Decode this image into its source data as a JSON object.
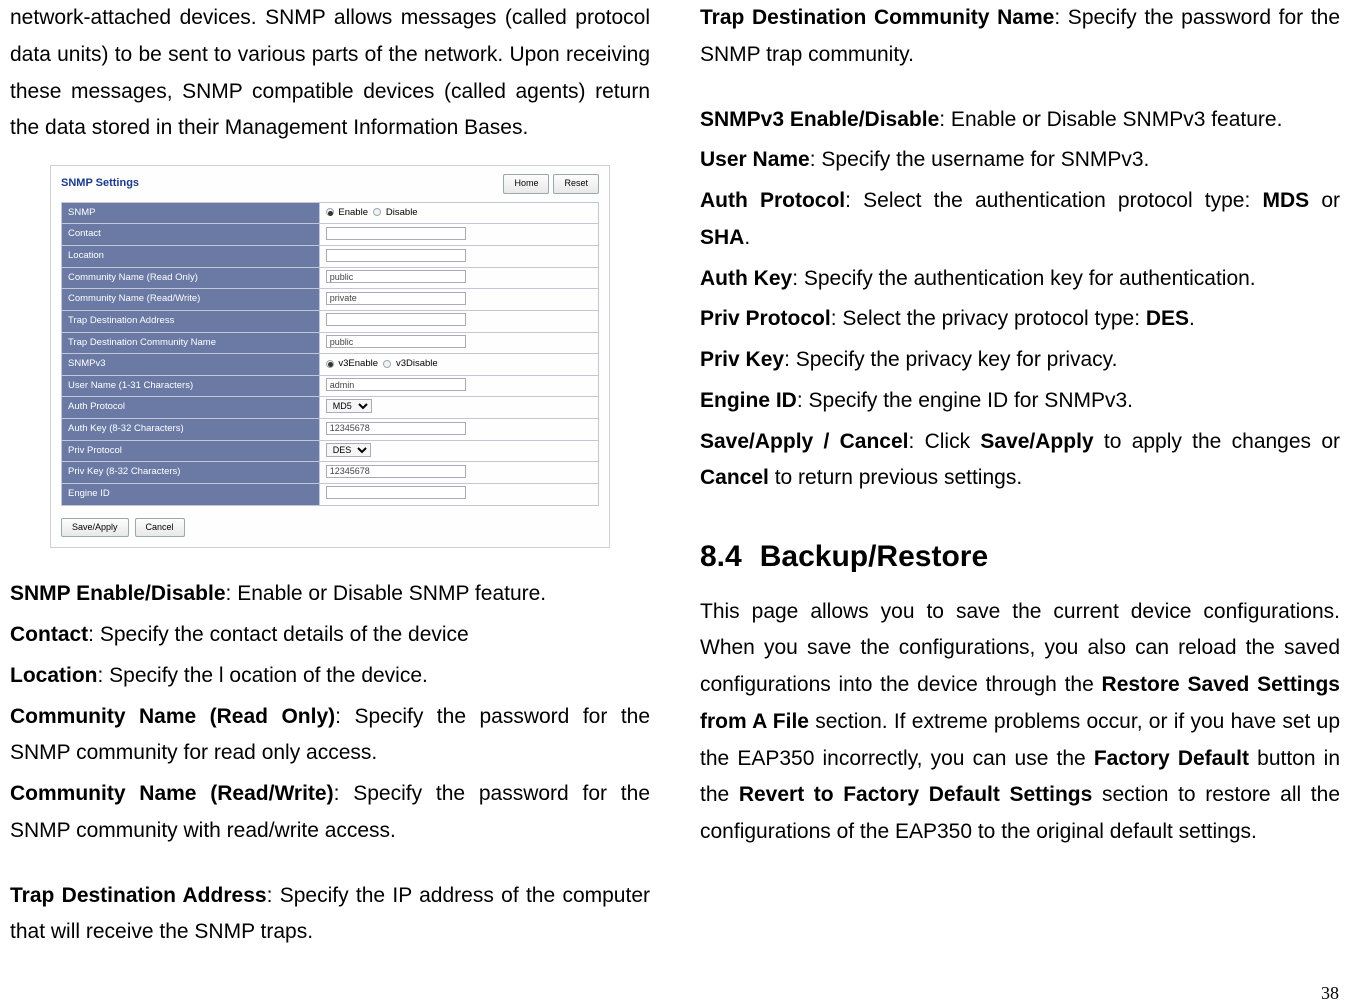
{
  "left": {
    "intro": "network-attached devices. SNMP allows messages (called protocol data units) to be sent to various parts of the network. Upon receiving these messages, SNMP compatible devices (called agents) return the data stored in their Management Information Bases.",
    "thumb": {
      "title": "SNMP Settings",
      "btn_home": "Home",
      "btn_reset": "Reset",
      "rows": {
        "snmp": "SNMP",
        "enable": "Enable",
        "disable": "Disable",
        "contact": "Contact",
        "location": "Location",
        "cn_ro": "Community Name (Read Only)",
        "cn_ro_val": "public",
        "cn_rw": "Community Name (Read/Write)",
        "cn_rw_val": "private",
        "trap_addr": "Trap Destination Address",
        "trap_cn": "Trap Destination Community Name",
        "trap_cn_val": "public",
        "snmpv3": "SNMPv3",
        "v3enable": "v3Enable",
        "v3disable": "v3Disable",
        "uname": "User Name (1-31 Characters)",
        "uname_val": "admin",
        "auth_proto": "Auth Protocol",
        "auth_proto_val": "MD5",
        "auth_key": "Auth Key (8-32 Characters)",
        "key_val": "12345678",
        "priv_proto": "Priv Protocol",
        "priv_proto_val": "DES",
        "priv_key": "Priv Key (8-32 Characters)",
        "engine": "Engine ID"
      },
      "btn_save": "Save/Apply",
      "btn_cancel": "Cancel"
    },
    "defs": {
      "snmp_ed_t": "SNMP Enable/Disable",
      "snmp_ed_b": ": Enable or Disable SNMP feature.",
      "contact_t": "Contact",
      "contact_b": ": Specify the contact details of the device",
      "location_t": "Location",
      "location_b": ": Specify the l ocation of the device.",
      "cnro_t": "Community Name (Read Only)",
      "cnro_b": ": Specify the password for the SNMP community for read only access.",
      "cnrw_t": "Community Name (Read/Write)",
      "cnrw_b": ": Specify the password for the SNMP community with read/write access.",
      "tda_t": "Trap Destination Address",
      "tda_b": ": Specify the IP address of the computer that will receive the SNMP traps."
    }
  },
  "right": {
    "defs": {
      "tdcn_t": "Trap Destination Community Name",
      "tdcn_b": ": Specify the password for the SNMP trap community.",
      "v3ed_t": "SNMPv3 Enable/Disable",
      "v3ed_b": ": Enable or Disable SNMPv3 feature.",
      "uname_t": "User Name",
      "uname_b": ": Specify the username for SNMPv3.",
      "ap_t": "Auth Protocol",
      "ap_b1": ": Select the authentication protocol type: ",
      "ap_mds": "MDS",
      "ap_or": " or ",
      "ap_sha": "SHA",
      "ap_dot": ".",
      "ak_t": "Auth Key",
      "ak_b": ": Specify the authentication key for authentication.",
      "pp_t": "Priv Protocol",
      "pp_b1": ": Select the privacy protocol type: ",
      "pp_des": "DES",
      "pp_dot": ".",
      "pk_t": "Priv Key",
      "pk_b": ": Specify the privacy key for privacy.",
      "eid_t": "Engine ID",
      "eid_b": ": Specify the engine ID for SNMPv3.",
      "sac_t": "Save/Apply / Cancel",
      "sac_b1": ": Click ",
      "sac_sa": "Save/Apply",
      "sac_b2": " to apply the changes or ",
      "sac_c": "Cancel",
      "sac_b3": " to return previous settings."
    },
    "section": {
      "num": "8.4",
      "title": "Backup/Restore",
      "body1": "This page allows you to save the current device configurations. When you save the configurations, you also can reload the saved configurations into the device through the ",
      "bold1": "Restore Saved Settings from A File",
      "body2": " section. If extreme problems occur, or if you have set up the EAP350 incorrectly, you can use the ",
      "bold2": "Factory Default",
      "body3": " button in the ",
      "bold3": "Revert to Factory Default Settings",
      "body4": " section to restore all the configurations of the EAP350 to the original default settings."
    }
  },
  "page_number": "38"
}
